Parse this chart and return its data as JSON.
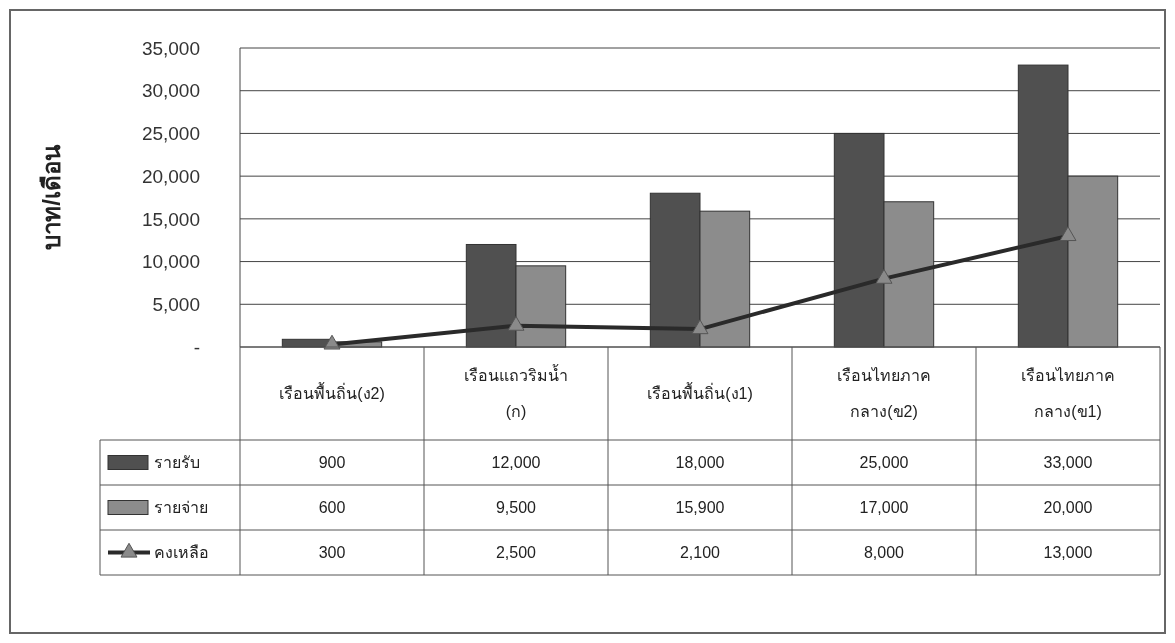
{
  "chart_data": {
    "type": "bar",
    "ylabel": "บาท/เดือน",
    "categories": [
      "เรือนพื้นถิ่น(ง2)",
      "เรือนแถวริมน้ำ\n(ก)",
      "เรือนพื้นถิ่น(ง1)",
      "เรือนไทยภาค\nกลาง(ข2)",
      "เรือนไทยภาค\nกลาง(ข1)"
    ],
    "series": [
      {
        "name": "รายรับ",
        "color": "#505050",
        "values": [
          900,
          12000,
          18000,
          25000,
          33000
        ],
        "value_labels": [
          "900",
          "12,000",
          "18,000",
          "25,000",
          "33,000"
        ]
      },
      {
        "name": "รายจ่าย",
        "color": "#8c8c8c",
        "values": [
          600,
          9500,
          15900,
          17000,
          20000
        ],
        "value_labels": [
          "600",
          "9,500",
          "15,900",
          "17,000",
          "20,000"
        ]
      },
      {
        "name": "คงเหลือ",
        "type": "line",
        "color": "#2a2a2a",
        "marker": "triangle",
        "values": [
          300,
          2500,
          2100,
          8000,
          13000
        ],
        "value_labels": [
          "300",
          "2,500",
          "2,100",
          "8,000",
          "13,000"
        ]
      }
    ],
    "ylim": [
      0,
      35000
    ],
    "yticks": [
      {
        "value": 0,
        "label": "-"
      },
      {
        "value": 5000,
        "label": "5,000"
      },
      {
        "value": 10000,
        "label": "10,000"
      },
      {
        "value": 15000,
        "label": "15,000"
      },
      {
        "value": 20000,
        "label": "20,000"
      },
      {
        "value": 25000,
        "label": "25,000"
      },
      {
        "value": 30000,
        "label": "30,000"
      },
      {
        "value": 35000,
        "label": "35,000"
      }
    ],
    "grid": "y",
    "legend": "bottom left"
  }
}
